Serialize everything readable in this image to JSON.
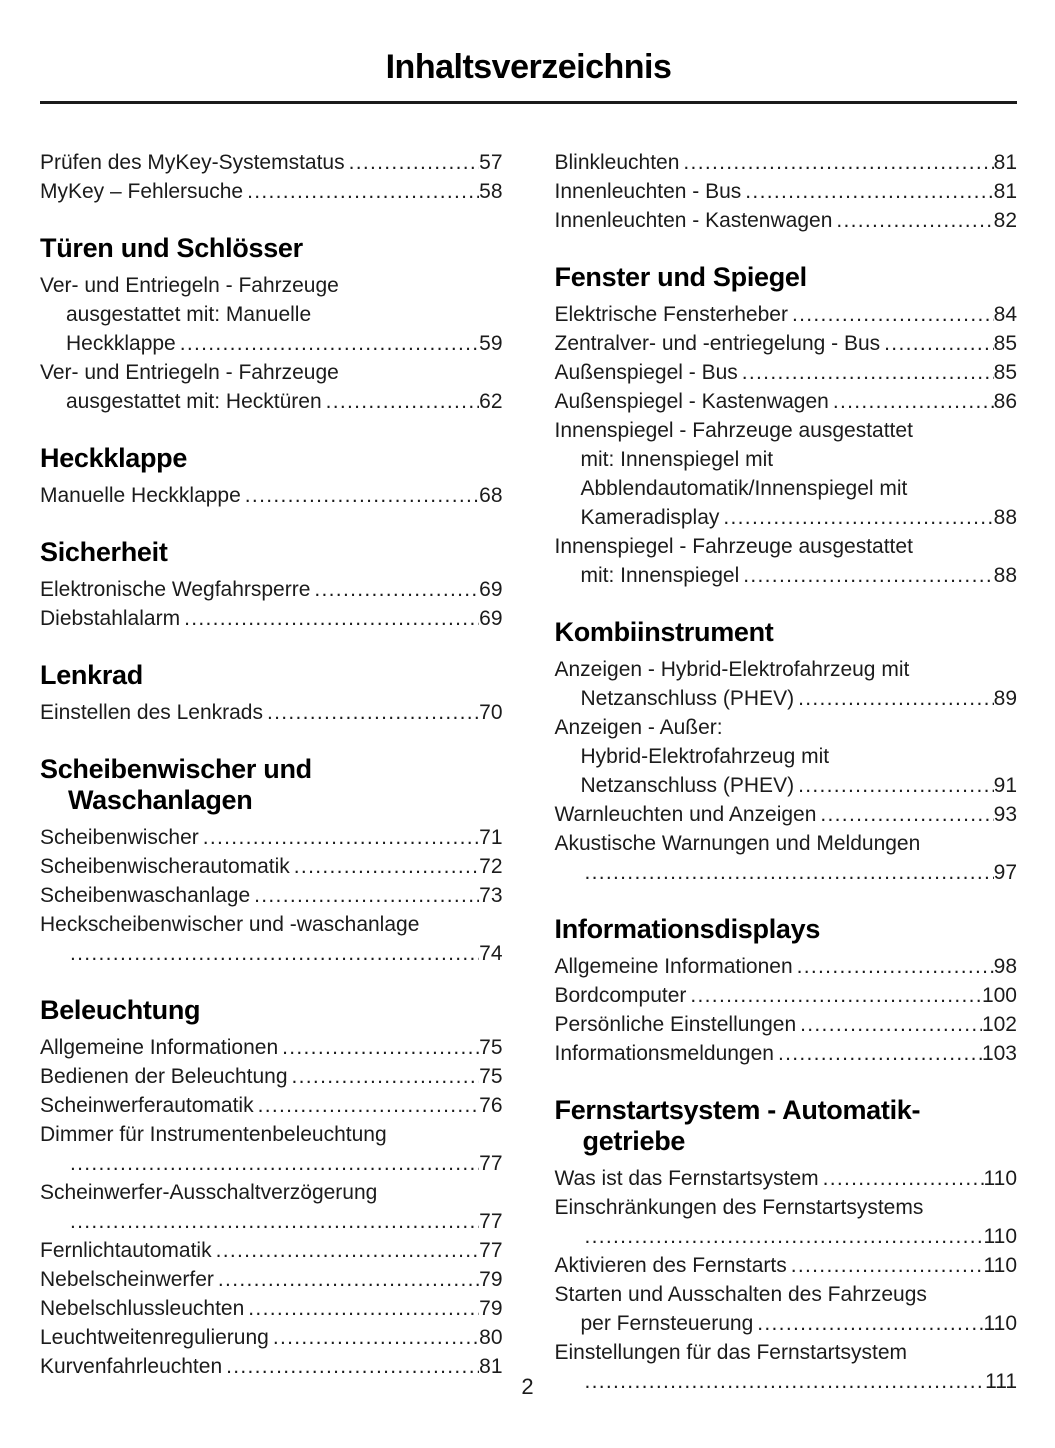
{
  "page": {
    "title": "Inhaltsverzeichnis",
    "page_number": "2",
    "text_color": "#1b1b1b",
    "heading_color": "#000000",
    "background_color": "#ffffff"
  },
  "columns": [
    {
      "sections": [
        {
          "heading": null,
          "entries": [
            {
              "lines": [
                "Prüfen des MyKey-Systemstatus"
              ],
              "page": "57"
            },
            {
              "lines": [
                "MyKey – Fehlersuche"
              ],
              "page": "58"
            }
          ]
        },
        {
          "heading": [
            "Türen und Schlösser"
          ],
          "entries": [
            {
              "lines": [
                "Ver- und Entriegeln - Fahrzeuge",
                "ausgestattet mit: Manuelle",
                "Heckklappe"
              ],
              "page": "59"
            },
            {
              "lines": [
                "Ver- und Entriegeln - Fahrzeuge",
                "ausgestattet mit: Hecktüren"
              ],
              "page": "62"
            }
          ]
        },
        {
          "heading": [
            "Heckklappe"
          ],
          "entries": [
            {
              "lines": [
                "Manuelle Heckklappe"
              ],
              "page": "68"
            }
          ]
        },
        {
          "heading": [
            "Sicherheit"
          ],
          "entries": [
            {
              "lines": [
                "Elektronische Wegfahrsperre"
              ],
              "page": "69"
            },
            {
              "lines": [
                "Diebstahlalarm"
              ],
              "page": "69"
            }
          ]
        },
        {
          "heading": [
            "Lenkrad"
          ],
          "entries": [
            {
              "lines": [
                "Einstellen des Lenkrads"
              ],
              "page": "70"
            }
          ]
        },
        {
          "heading": [
            "Scheibenwischer und",
            "Waschanlagen"
          ],
          "entries": [
            {
              "lines": [
                "Scheibenwischer"
              ],
              "page": "71"
            },
            {
              "lines": [
                "Scheibenwischerautomatik"
              ],
              "page": "72"
            },
            {
              "lines": [
                "Scheibenwaschanlage"
              ],
              "page": "73"
            },
            {
              "lines": [
                "Heckscheibenwischer und -waschanlage",
                ""
              ],
              "page": "74"
            }
          ]
        },
        {
          "heading": [
            "Beleuchtung"
          ],
          "entries": [
            {
              "lines": [
                "Allgemeine Informationen"
              ],
              "page": "75"
            },
            {
              "lines": [
                "Bedienen der Beleuchtung"
              ],
              "page": "75"
            },
            {
              "lines": [
                "Scheinwerferautomatik"
              ],
              "page": "76"
            },
            {
              "lines": [
                "Dimmer für Instrumentenbeleuchtung",
                ""
              ],
              "page": "77"
            },
            {
              "lines": [
                "Scheinwerfer-Ausschaltverzögerung",
                ""
              ],
              "page": "77"
            },
            {
              "lines": [
                "Fernlichtautomatik"
              ],
              "page": "77"
            },
            {
              "lines": [
                "Nebelscheinwerfer"
              ],
              "page": "79"
            },
            {
              "lines": [
                "Nebelschlussleuchten"
              ],
              "page": "79"
            },
            {
              "lines": [
                "Leuchtweitenregulierung"
              ],
              "page": "80"
            },
            {
              "lines": [
                "Kurvenfahrleuchten"
              ],
              "page": "81"
            }
          ]
        }
      ]
    },
    {
      "sections": [
        {
          "heading": null,
          "entries": [
            {
              "lines": [
                "Blinkleuchten"
              ],
              "page": "81"
            },
            {
              "lines": [
                "Innenleuchten - Bus"
              ],
              "page": "81"
            },
            {
              "lines": [
                "Innenleuchten - Kastenwagen"
              ],
              "page": "82"
            }
          ]
        },
        {
          "heading": [
            "Fenster und Spiegel"
          ],
          "entries": [
            {
              "lines": [
                "Elektrische Fensterheber"
              ],
              "page": "84"
            },
            {
              "lines": [
                "Zentralver- und -entriegelung - Bus"
              ],
              "page": "85"
            },
            {
              "lines": [
                "Außenspiegel - Bus"
              ],
              "page": "85"
            },
            {
              "lines": [
                "Außenspiegel - Kastenwagen"
              ],
              "page": "86"
            },
            {
              "lines": [
                "Innenspiegel - Fahrzeuge ausgestattet",
                "mit: Innenspiegel mit",
                "Abblendautomatik/Innenspiegel mit",
                "Kameradisplay"
              ],
              "page": "88"
            },
            {
              "lines": [
                "Innenspiegel - Fahrzeuge ausgestattet",
                "mit: Innenspiegel"
              ],
              "page": "88"
            }
          ]
        },
        {
          "heading": [
            "Kombiinstrument"
          ],
          "entries": [
            {
              "lines": [
                "Anzeigen - Hybrid-Elektrofahrzeug mit",
                "Netzanschluss (PHEV)"
              ],
              "page": "89"
            },
            {
              "lines": [
                "Anzeigen - Außer:",
                "Hybrid-Elektrofahrzeug mit",
                "Netzanschluss (PHEV)"
              ],
              "page": "91"
            },
            {
              "lines": [
                "Warnleuchten und Anzeigen"
              ],
              "page": "93"
            },
            {
              "lines": [
                "Akustische Warnungen und Meldungen",
                ""
              ],
              "page": "97"
            }
          ]
        },
        {
          "heading": [
            "Informationsdisplays"
          ],
          "entries": [
            {
              "lines": [
                "Allgemeine Informationen"
              ],
              "page": "98"
            },
            {
              "lines": [
                "Bordcomputer"
              ],
              "page": "100"
            },
            {
              "lines": [
                "Persönliche Einstellungen"
              ],
              "page": "102"
            },
            {
              "lines": [
                "Informationsmeldungen"
              ],
              "page": "103"
            }
          ]
        },
        {
          "heading": [
            "Fernstartsystem - Automatik-",
            "getriebe"
          ],
          "entries": [
            {
              "lines": [
                "Was ist das Fernstartsystem"
              ],
              "page": "110"
            },
            {
              "lines": [
                "Einschränkungen des Fernstartsystems",
                ""
              ],
              "page": "110"
            },
            {
              "lines": [
                "Aktivieren des Fernstarts"
              ],
              "page": "110"
            },
            {
              "lines": [
                "Starten und Ausschalten des Fahrzeugs",
                "per Fernsteuerung"
              ],
              "page": "110"
            },
            {
              "lines": [
                "Einstellungen für das Fernstartsystem",
                ""
              ],
              "page": "111"
            }
          ]
        }
      ]
    }
  ]
}
